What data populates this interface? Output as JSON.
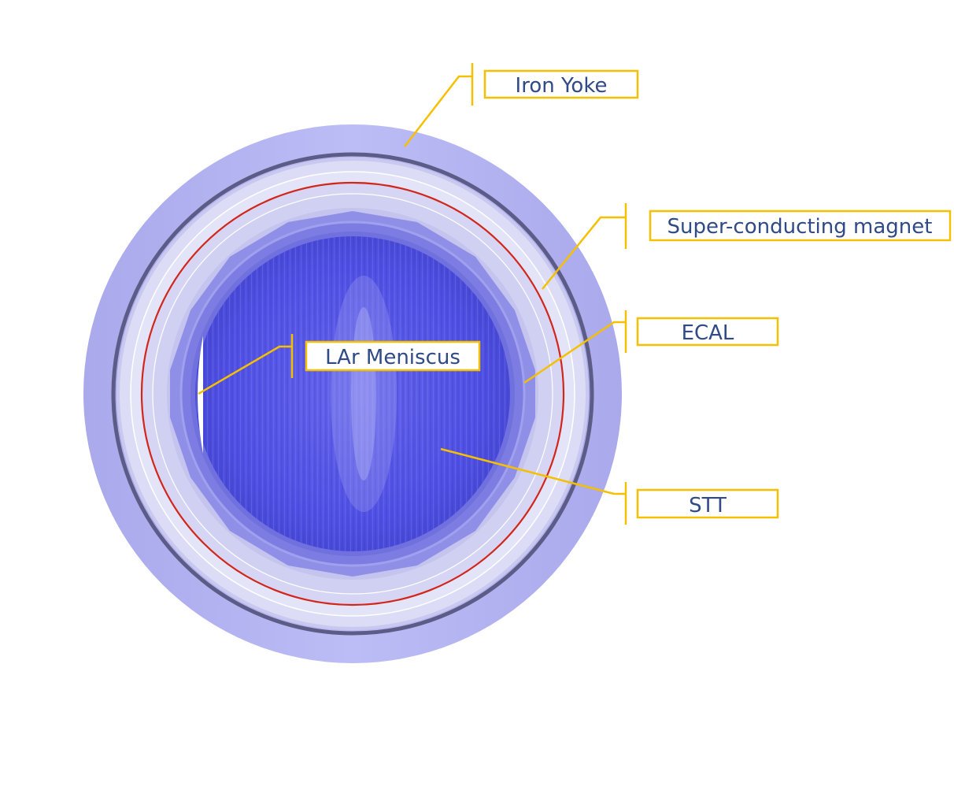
{
  "labels": {
    "iron_yoke": "Iron Yoke",
    "magnet": "Super-conducting magnet",
    "ecal": "ECAL",
    "lar_meniscus": "LAr Meniscus",
    "stt": "STT"
  },
  "colors": {
    "leader": "#f5c000",
    "label_text": "#2f4a86",
    "yoke": "#b3b3f5",
    "magnet_ring": "#dcdcf6",
    "red_coil": "#d2261a",
    "ecal": "#8a8ae6",
    "stt": "#5656e6"
  }
}
